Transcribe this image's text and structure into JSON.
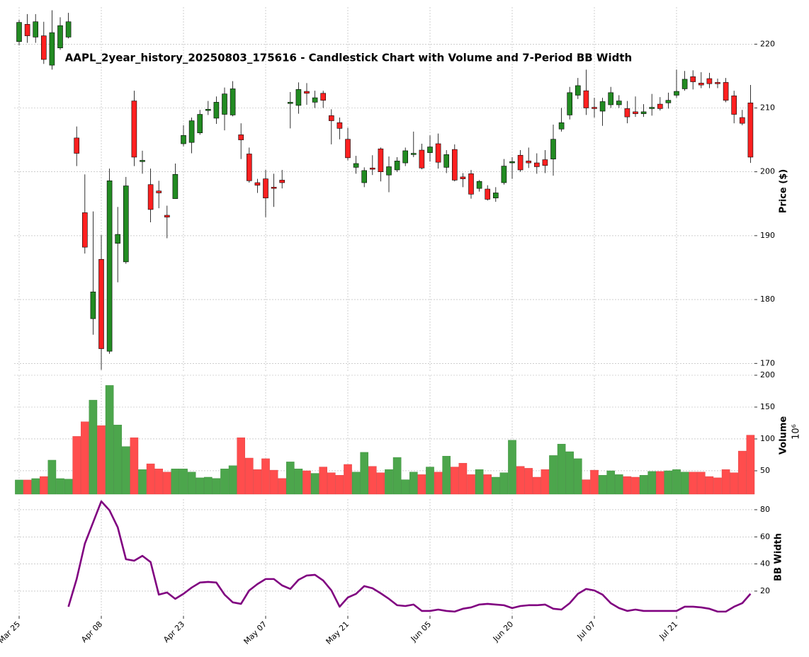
{
  "chart_data": [
    {
      "type": "candlestick",
      "title": "AAPL_2year_history_20250803_175616 - Candlestick Chart with Volume and 7-Period BB Width",
      "ylabel": "Price ($)",
      "up_color": "#228b22",
      "down_color": "#ff2020",
      "ylim": [
        168.7,
        225.8
      ],
      "yticks": [
        170,
        180,
        190,
        200,
        210,
        220
      ],
      "grid": true,
      "open": [
        220.4,
        223.1,
        221.1,
        221.3,
        216.7,
        219.4,
        221.1,
        205.3,
        193.6,
        177.0,
        186.3,
        171.9,
        188.8,
        185.9,
        211.1,
        201.6,
        198.0,
        197.0,
        193.2,
        195.8,
        204.4,
        204.6,
        206.1,
        209.6,
        208.4,
        209.0,
        208.9,
        205.8,
        202.8,
        198.3,
        198.9,
        197.6,
        198.7,
        210.7,
        210.4,
        212.6,
        210.9,
        212.3,
        208.8,
        207.7,
        205.1,
        200.7,
        198.3,
        200.6,
        203.6,
        199.5,
        200.3,
        201.4,
        202.7,
        203.4,
        203.0,
        204.4,
        200.7,
        203.5,
        199.2,
        199.7,
        197.4,
        197.3,
        195.9,
        198.3,
        201.4,
        202.6,
        201.7,
        201.4,
        201.9,
        202.0,
        206.7,
        208.9,
        212.0,
        212.7,
        210.1,
        209.5,
        210.5,
        210.5,
        209.9,
        209.4,
        209.1,
        209.9,
        210.6,
        210.8,
        212.0,
        213.0,
        214.9,
        213.9,
        214.6,
        214.0,
        214.0,
        211.9,
        208.5,
        210.8
      ],
      "high": [
        223.8,
        224.7,
        224.7,
        223.5,
        225.3,
        224.2,
        224.9,
        207.1,
        199.6,
        193.8,
        190.1,
        200.5,
        194.5,
        199.2,
        212.7,
        203.3,
        200.5,
        198.6,
        194.7,
        201.3,
        207.3,
        208.5,
        209.7,
        211.1,
        211.8,
        213.2,
        214.2,
        207.6,
        203.8,
        198.9,
        200.3,
        199.7,
        200.3,
        212.5,
        214.0,
        213.9,
        212.7,
        212.7,
        209.8,
        208.5,
        206.9,
        202.5,
        200.7,
        202.6,
        203.8,
        202.4,
        202.3,
        203.8,
        206.3,
        204.4,
        205.7,
        206.0,
        203.4,
        204.3,
        199.8,
        200.3,
        198.7,
        197.9,
        197.6,
        202.0,
        202.3,
        203.4,
        203.8,
        202.9,
        203.4,
        207.4,
        210.0,
        213.3,
        214.7,
        216.0,
        211.6,
        211.6,
        213.3,
        212.0,
        211.1,
        211.8,
        210.6,
        212.2,
        211.7,
        212.4,
        216.0,
        215.8,
        215.9,
        215.6,
        215.5,
        214.6,
        214.7,
        212.7,
        209.7,
        213.6
      ],
      "low": [
        219.8,
        220.2,
        220.2,
        216.9,
        216.0,
        219.1,
        220.9,
        200.9,
        187.2,
        174.5,
        169.0,
        171.5,
        182.7,
        185.6,
        200.9,
        199.7,
        192.1,
        194.3,
        189.6,
        195.8,
        204.0,
        202.9,
        205.8,
        208.9,
        207.5,
        206.5,
        208.7,
        202.0,
        198.3,
        196.7,
        192.9,
        194.5,
        197.4,
        206.8,
        209.1,
        210.5,
        210.0,
        210.0,
        204.3,
        205.1,
        201.8,
        199.7,
        197.6,
        199.5,
        198.5,
        196.8,
        200.0,
        200.9,
        202.3,
        200.4,
        201.6,
        200.5,
        199.8,
        198.5,
        197.6,
        195.8,
        196.9,
        195.5,
        195.3,
        198.0,
        198.9,
        200.0,
        200.6,
        199.7,
        199.8,
        199.4,
        206.3,
        208.2,
        211.4,
        208.9,
        208.5,
        207.2,
        210.0,
        210.0,
        207.6,
        208.6,
        208.6,
        208.8,
        209.6,
        209.9,
        211.6,
        212.7,
        212.9,
        213.1,
        213.1,
        213.1,
        210.9,
        207.6,
        207.3,
        201.4
      ],
      "close": [
        223.4,
        221.3,
        223.5,
        217.6,
        221.8,
        222.9,
        223.5,
        202.9,
        188.2,
        181.2,
        172.3,
        198.6,
        190.2,
        197.8,
        202.3,
        201.8,
        194.1,
        196.7,
        192.9,
        199.6,
        205.7,
        208.0,
        209.0,
        209.8,
        210.9,
        212.2,
        213.0,
        205.0,
        198.6,
        197.9,
        195.9,
        197.4,
        198.3,
        210.9,
        212.9,
        212.3,
        211.6,
        211.2,
        208.0,
        206.8,
        202.2,
        201.3,
        200.2,
        200.4,
        200.0,
        200.8,
        201.7,
        203.3,
        202.9,
        200.6,
        203.9,
        201.5,
        202.7,
        198.7,
        198.9,
        196.5,
        198.5,
        195.7,
        196.7,
        200.9,
        201.6,
        200.3,
        201.4,
        200.8,
        201.0,
        205.1,
        207.7,
        212.4,
        213.5,
        210.0,
        209.9,
        211.0,
        212.4,
        211.1,
        208.6,
        209.1,
        209.4,
        210.1,
        209.9,
        211.2,
        212.6,
        214.5,
        214.1,
        213.6,
        213.8,
        213.8,
        211.2,
        209.0,
        207.6,
        202.3
      ]
    },
    {
      "type": "bar",
      "ylabel": "Volume",
      "offset_label": "10⁶",
      "up_color": "#4ca64c",
      "down_color": "#ff4d4d",
      "ylim": [
        13.3,
        200
      ],
      "yticks": [
        50,
        100,
        150,
        200
      ],
      "grid": true,
      "values": [
        35.6,
        35.6,
        37.8,
        41,
        66.7,
        37.8,
        37,
        104,
        127,
        161,
        121,
        184,
        122,
        88,
        102,
        52,
        61,
        53,
        48,
        53,
        53,
        48,
        39,
        40,
        38,
        53,
        58,
        102,
        70,
        52,
        69,
        51,
        38,
        64,
        53,
        50,
        46,
        56,
        47,
        43,
        60,
        48,
        79,
        57,
        47,
        52,
        71,
        36,
        48,
        44,
        56,
        48,
        73,
        56,
        62,
        44,
        52,
        44,
        40,
        47,
        98,
        57,
        54,
        40,
        52,
        74,
        92,
        80,
        69,
        36,
        51,
        43,
        50,
        44,
        41,
        40,
        43,
        49,
        49,
        50,
        52,
        48,
        48,
        48,
        41,
        39,
        52,
        47,
        81,
        106
      ]
    },
    {
      "type": "line",
      "ylabel": "BB Width",
      "color": "#800080",
      "ylim": [
        1.7,
        87.8
      ],
      "yticks": [
        20,
        40,
        60,
        80
      ],
      "grid": true,
      "categories": [
        "Mar 25",
        null,
        null,
        null,
        null,
        null,
        null,
        null,
        null,
        null,
        "Apr 08",
        null,
        null,
        null,
        null,
        null,
        null,
        null,
        null,
        null,
        "Apr 23",
        null,
        null,
        null,
        null,
        null,
        null,
        null,
        null,
        null,
        "May 07",
        null,
        null,
        null,
        null,
        null,
        null,
        null,
        null,
        null,
        "May 21",
        null,
        null,
        null,
        null,
        null,
        null,
        null,
        null,
        null,
        "Jun 05",
        null,
        null,
        null,
        null,
        null,
        null,
        null,
        null,
        null,
        "Jun 20",
        null,
        null,
        null,
        null,
        null,
        null,
        null,
        null,
        null,
        "Jul 07",
        null,
        null,
        null,
        null,
        null,
        null,
        null,
        null,
        null,
        "Jul 21",
        null,
        null,
        null,
        null,
        null,
        null,
        null,
        null,
        null
      ],
      "values": [
        null,
        null,
        null,
        null,
        null,
        null,
        8.5,
        28.9,
        55,
        70.6,
        86.2,
        79.5,
        67,
        43.5,
        42.4,
        46,
        41.4,
        17.4,
        19,
        14.3,
        18,
        22.6,
        26.3,
        26.8,
        26.3,
        17.4,
        11.7,
        10.6,
        20.5,
        25.2,
        28.9,
        28.9,
        24.2,
        21.6,
        28.3,
        31.5,
        32,
        27.8,
        20.5,
        8.5,
        15.3,
        18,
        23.7,
        22.1,
        18.4,
        14.3,
        9.6,
        9,
        10.1,
        5.4,
        5.4,
        6.4,
        5.4,
        4.9,
        7,
        8,
        10.1,
        10.6,
        10.1,
        9.6,
        7.5,
        9,
        9.6,
        9.6,
        10.1,
        7,
        6.4,
        11.1,
        18,
        21.6,
        20.5,
        17.4,
        11.1,
        7.5,
        5.4,
        6.4,
        5.4,
        5.4,
        5.4,
        5.4,
        5.4,
        8.5,
        8.5,
        8,
        7,
        4.9,
        4.9,
        8.5,
        11.1,
        18
      ]
    }
  ]
}
